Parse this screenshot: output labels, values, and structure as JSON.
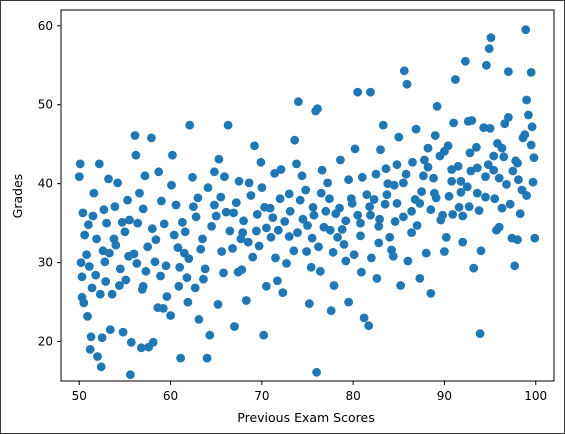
{
  "chart_data": {
    "type": "scatter",
    "title": "",
    "xlabel": "Previous Exam Scores",
    "ylabel": "Grades",
    "xlim": [
      48,
      102
    ],
    "ylim": [
      15,
      62
    ],
    "xticks": [
      50,
      60,
      70,
      80,
      90,
      100
    ],
    "yticks": [
      20,
      30,
      40,
      50,
      60
    ],
    "grid": false,
    "color": "#1f77b4",
    "points": [
      [
        50.1,
        42.5
      ],
      [
        50.0,
        40.9
      ],
      [
        50.4,
        36.3
      ],
      [
        50.2,
        30.0
      ],
      [
        50.3,
        25.6
      ],
      [
        50.5,
        24.9
      ],
      [
        50.8,
        31.0
      ],
      [
        51.0,
        34.8
      ],
      [
        50.9,
        23.2
      ],
      [
        51.3,
        20.6
      ],
      [
        51.6,
        38.8
      ],
      [
        51.2,
        19.0
      ],
      [
        52.0,
        18.1
      ],
      [
        52.2,
        42.5
      ],
      [
        52.4,
        16.8
      ],
      [
        52.5,
        20.5
      ],
      [
        52.6,
        31.5
      ],
      [
        52.9,
        27.6
      ],
      [
        53.0,
        35.0
      ],
      [
        53.2,
        40.6
      ],
      [
        53.4,
        21.5
      ],
      [
        53.8,
        33.0
      ],
      [
        54.2,
        40.1
      ],
      [
        54.5,
        29.2
      ],
      [
        54.8,
        21.2
      ],
      [
        55.4,
        30.8
      ],
      [
        55.6,
        15.8
      ],
      [
        55.7,
        19.9
      ],
      [
        55.5,
        35.4
      ],
      [
        56.1,
        46.1
      ],
      [
        56.2,
        43.6
      ],
      [
        56.6,
        38.8
      ],
      [
        56.8,
        19.2
      ],
      [
        57.0,
        27.0
      ],
      [
        57.3,
        28.9
      ],
      [
        57.9,
        45.8
      ],
      [
        57.6,
        19.3
      ],
      [
        58.1,
        19.9
      ],
      [
        58.6,
        24.3
      ],
      [
        58.7,
        41.5
      ],
      [
        59.2,
        24.2
      ],
      [
        59.6,
        25.7
      ],
      [
        60.0,
        23.3
      ],
      [
        60.2,
        43.6
      ],
      [
        60.6,
        37.3
      ],
      [
        61.1,
        17.9
      ],
      [
        61.5,
        31.2
      ],
      [
        61.9,
        25.0
      ],
      [
        62.1,
        47.4
      ],
      [
        62.4,
        40.8
      ],
      [
        62.7,
        26.8
      ],
      [
        63.1,
        22.8
      ],
      [
        63.5,
        33.0
      ],
      [
        64.0,
        17.9
      ],
      [
        64.3,
        20.8
      ],
      [
        64.8,
        41.5
      ],
      [
        65.2,
        24.7
      ],
      [
        65.6,
        31.4
      ],
      [
        66.3,
        47.4
      ],
      [
        66.1,
        36.4
      ],
      [
        67.0,
        21.9
      ],
      [
        67.4,
        28.8
      ],
      [
        67.9,
        33.8
      ],
      [
        68.3,
        25.2
      ],
      [
        68.8,
        38.5
      ],
      [
        69.2,
        44.8
      ],
      [
        69.7,
        32.1
      ],
      [
        70.2,
        20.8
      ],
      [
        70.5,
        27.0
      ],
      [
        70.9,
        36.9
      ],
      [
        71.4,
        41.3
      ],
      [
        71.8,
        34.1
      ],
      [
        72.3,
        26.2
      ],
      [
        72.7,
        29.9
      ],
      [
        73.1,
        36.5
      ],
      [
        73.6,
        45.5
      ],
      [
        74.0,
        50.4
      ],
      [
        74.4,
        41.0
      ],
      [
        74.9,
        31.4
      ],
      [
        75.2,
        24.8
      ],
      [
        75.6,
        37.0
      ],
      [
        75.9,
        49.2
      ],
      [
        76.1,
        49.5
      ],
      [
        76.0,
        16.1
      ],
      [
        76.4,
        28.9
      ],
      [
        76.8,
        34.5
      ],
      [
        77.2,
        40.1
      ],
      [
        77.6,
        23.9
      ],
      [
        78.1,
        36.2
      ],
      [
        78.6,
        43.0
      ],
      [
        79.2,
        30.2
      ],
      [
        79.5,
        25.0
      ],
      [
        79.9,
        37.5
      ],
      [
        80.2,
        44.4
      ],
      [
        80.5,
        51.6
      ],
      [
        80.8,
        33.4
      ],
      [
        81.2,
        23.0
      ],
      [
        81.7,
        22.0
      ],
      [
        81.9,
        51.6
      ],
      [
        82.3,
        38.0
      ],
      [
        82.6,
        28.0
      ],
      [
        82.9,
        35.5
      ],
      [
        83.3,
        47.4
      ],
      [
        83.6,
        41.9
      ],
      [
        84.0,
        33.2
      ],
      [
        84.4,
        30.8
      ],
      [
        84.8,
        42.4
      ],
      [
        85.2,
        27.1
      ],
      [
        85.6,
        54.3
      ],
      [
        85.9,
        52.6
      ],
      [
        86.4,
        36.5
      ],
      [
        86.9,
        46.9
      ],
      [
        87.3,
        28.0
      ],
      [
        87.7,
        41.0
      ],
      [
        88.2,
        44.5
      ],
      [
        88.5,
        26.1
      ],
      [
        88.9,
        38.8
      ],
      [
        89.2,
        49.8
      ],
      [
        89.6,
        35.4
      ],
      [
        90.0,
        31.4
      ],
      [
        90.4,
        44.8
      ],
      [
        90.8,
        40.3
      ],
      [
        91.2,
        53.2
      ],
      [
        91.6,
        37.0
      ],
      [
        92.0,
        32.6
      ],
      [
        92.3,
        55.5
      ],
      [
        92.6,
        47.9
      ],
      [
        92.9,
        41.6
      ],
      [
        93.2,
        29.3
      ],
      [
        93.6,
        38.8
      ],
      [
        93.9,
        21.0
      ],
      [
        94.3,
        47.1
      ],
      [
        94.6,
        55.0
      ],
      [
        94.9,
        57.1
      ],
      [
        95.1,
        58.5
      ],
      [
        95.4,
        43.5
      ],
      [
        95.7,
        34.1
      ],
      [
        96.0,
        40.7
      ],
      [
        96.3,
        36.9
      ],
      [
        96.6,
        47.6
      ],
      [
        97.0,
        54.2
      ],
      [
        97.4,
        33.1
      ],
      [
        97.7,
        29.6
      ],
      [
        98.0,
        42.6
      ],
      [
        98.3,
        36.2
      ],
      [
        98.6,
        45.8
      ],
      [
        98.9,
        59.5
      ],
      [
        99.2,
        48.7
      ],
      [
        99.5,
        54.1
      ],
      [
        99.7,
        40.2
      ],
      [
        99.9,
        33.1
      ],
      [
        51.8,
        28.4
      ],
      [
        53.6,
        26.0
      ],
      [
        54.0,
        32.2
      ],
      [
        55.1,
        27.8
      ],
      [
        56.4,
        35.0
      ],
      [
        57.5,
        32.0
      ],
      [
        58.3,
        30.1
      ],
      [
        59.0,
        37.8
      ],
      [
        60.4,
        33.5
      ],
      [
        61.3,
        35.1
      ],
      [
        62.0,
        30.5
      ],
      [
        63.0,
        38.2
      ],
      [
        64.5,
        34.6
      ],
      [
        65.5,
        38.3
      ],
      [
        66.8,
        31.8
      ],
      [
        67.5,
        40.3
      ],
      [
        68.0,
        35.3
      ],
      [
        69.0,
        30.7
      ],
      [
        70.0,
        39.5
      ],
      [
        71.0,
        33.2
      ],
      [
        72.0,
        38.1
      ],
      [
        73.0,
        33.3
      ],
      [
        74.5,
        35.5
      ],
      [
        75.5,
        33.1
      ],
      [
        76.5,
        38.8
      ],
      [
        77.5,
        34.1
      ],
      [
        78.5,
        36.9
      ],
      [
        79.5,
        40.5
      ],
      [
        80.5,
        36.0
      ],
      [
        81.5,
        38.6
      ],
      [
        82.5,
        41.2
      ],
      [
        83.5,
        37.4
      ],
      [
        84.5,
        39.8
      ],
      [
        85.5,
        35.8
      ],
      [
        86.5,
        42.7
      ],
      [
        87.5,
        39.0
      ],
      [
        88.5,
        36.7
      ],
      [
        89.5,
        43.5
      ],
      [
        90.5,
        38.4
      ],
      [
        91.5,
        42.2
      ],
      [
        92.5,
        39.6
      ],
      [
        93.5,
        44.6
      ],
      [
        94.5,
        40.9
      ],
      [
        95.5,
        38.1
      ],
      [
        96.5,
        43.4
      ],
      [
        97.5,
        41.6
      ],
      [
        98.5,
        39.2
      ],
      [
        99.5,
        44.9
      ],
      [
        50.6,
        33.5
      ],
      [
        51.5,
        35.9
      ],
      [
        52.8,
        30.1
      ],
      [
        53.9,
        37.1
      ],
      [
        55.0,
        33.9
      ],
      [
        56.0,
        31.1
      ],
      [
        57.0,
        36.8
      ],
      [
        58.0,
        34.3
      ],
      [
        59.5,
        29.6
      ],
      [
        60.8,
        31.9
      ],
      [
        61.8,
        28.1
      ],
      [
        62.8,
        35.8
      ],
      [
        63.8,
        29.2
      ],
      [
        64.8,
        37.3
      ],
      [
        65.8,
        28.7
      ],
      [
        66.5,
        34.0
      ],
      [
        67.2,
        37.6
      ],
      [
        68.5,
        32.6
      ],
      [
        69.5,
        36.1
      ],
      [
        70.5,
        34.4
      ],
      [
        71.5,
        30.6
      ],
      [
        72.5,
        35.2
      ],
      [
        73.5,
        31.5
      ],
      [
        74.2,
        37.9
      ],
      [
        75.0,
        34.7
      ],
      [
        76.2,
        32.0
      ],
      [
        77.0,
        36.5
      ],
      [
        77.8,
        31.3
      ],
      [
        78.8,
        34.2
      ],
      [
        79.8,
        38.1
      ],
      [
        80.8,
        35.0
      ],
      [
        81.8,
        37.1
      ],
      [
        82.8,
        34.6
      ],
      [
        83.8,
        40.0
      ],
      [
        84.8,
        37.5
      ],
      [
        85.8,
        41.2
      ],
      [
        86.8,
        38.0
      ],
      [
        87.8,
        43.0
      ],
      [
        88.8,
        40.7
      ],
      [
        89.8,
        36.0
      ],
      [
        90.8,
        41.8
      ],
      [
        91.8,
        38.9
      ],
      [
        92.8,
        43.9
      ],
      [
        93.8,
        36.6
      ],
      [
        94.8,
        42.4
      ],
      [
        95.8,
        45.1
      ],
      [
        96.8,
        39.9
      ],
      [
        97.8,
        42.9
      ],
      [
        98.8,
        46.2
      ],
      [
        99.8,
        43.3
      ],
      [
        50.3,
        28.2
      ],
      [
        51.1,
        29.5
      ],
      [
        51.9,
        33.0
      ],
      [
        52.3,
        26.0
      ],
      [
        53.3,
        31.2
      ],
      [
        54.4,
        27.1
      ],
      [
        55.3,
        37.9
      ],
      [
        56.3,
        29.9
      ],
      [
        57.2,
        41.0
      ],
      [
        58.4,
        32.9
      ],
      [
        59.3,
        34.9
      ],
      [
        60.1,
        39.8
      ],
      [
        60.9,
        27.0
      ],
      [
        61.6,
        33.9
      ],
      [
        62.5,
        37.1
      ],
      [
        63.3,
        31.7
      ],
      [
        64.1,
        39.5
      ],
      [
        65.0,
        35.9
      ],
      [
        65.9,
        40.9
      ],
      [
        66.9,
        36.3
      ],
      [
        67.7,
        33.0
      ],
      [
        68.6,
        40.1
      ],
      [
        69.4,
        34.0
      ],
      [
        70.3,
        37.0
      ],
      [
        71.2,
        35.7
      ],
      [
        72.1,
        41.8
      ],
      [
        73.0,
        38.7
      ],
      [
        73.9,
        33.8
      ],
      [
        74.8,
        39.2
      ],
      [
        75.7,
        36.0
      ],
      [
        76.6,
        41.7
      ],
      [
        77.4,
        38.1
      ],
      [
        78.3,
        33.2
      ],
      [
        79.2,
        35.3
      ],
      [
        80.1,
        31.0
      ],
      [
        81.0,
        40.8
      ],
      [
        81.9,
        36.0
      ],
      [
        82.8,
        32.5
      ],
      [
        83.7,
        38.6
      ],
      [
        84.6,
        35.2
      ],
      [
        85.5,
        40.1
      ],
      [
        86.4,
        33.8
      ],
      [
        87.3,
        37.5
      ],
      [
        88.2,
        42.1
      ],
      [
        89.1,
        38.2
      ],
      [
        90.0,
        44.1
      ],
      [
        90.9,
        36.1
      ],
      [
        91.8,
        40.3
      ],
      [
        92.7,
        37.1
      ],
      [
        93.6,
        42.0
      ],
      [
        94.5,
        38.3
      ],
      [
        95.4,
        41.7
      ],
      [
        96.3,
        44.5
      ],
      [
        97.2,
        37.4
      ],
      [
        98.1,
        40.5
      ],
      [
        99.0,
        38.5
      ],
      [
        99.6,
        47.2
      ],
      [
        51.4,
        26.8
      ],
      [
        52.7,
        36.7
      ],
      [
        54.7,
        35.1
      ],
      [
        56.9,
        26.6
      ],
      [
        58.9,
        28.3
      ],
      [
        61.0,
        29.4
      ],
      [
        63.6,
        27.9
      ],
      [
        65.3,
        43.1
      ],
      [
        67.8,
        29.1
      ],
      [
        69.9,
        42.7
      ],
      [
        71.7,
        27.7
      ],
      [
        73.8,
        42.5
      ],
      [
        75.4,
        29.4
      ],
      [
        77.9,
        27.1
      ],
      [
        79.0,
        32.3
      ],
      [
        80.9,
        28.8
      ],
      [
        82.0,
        30.6
      ],
      [
        83.0,
        44.3
      ],
      [
        84.2,
        31.6
      ],
      [
        85.0,
        45.9
      ],
      [
        86.0,
        30.2
      ],
      [
        87.0,
        34.7
      ],
      [
        88.0,
        31.2
      ],
      [
        89.0,
        46.1
      ],
      [
        90.2,
        33.2
      ],
      [
        91.0,
        47.7
      ],
      [
        92.0,
        35.9
      ],
      [
        93.0,
        48.0
      ],
      [
        94.0,
        31.5
      ],
      [
        95.0,
        47.0
      ],
      [
        96.0,
        34.5
      ],
      [
        97.0,
        48.4
      ],
      [
        98.0,
        32.9
      ],
      [
        99.0,
        50.6
      ]
    ]
  }
}
